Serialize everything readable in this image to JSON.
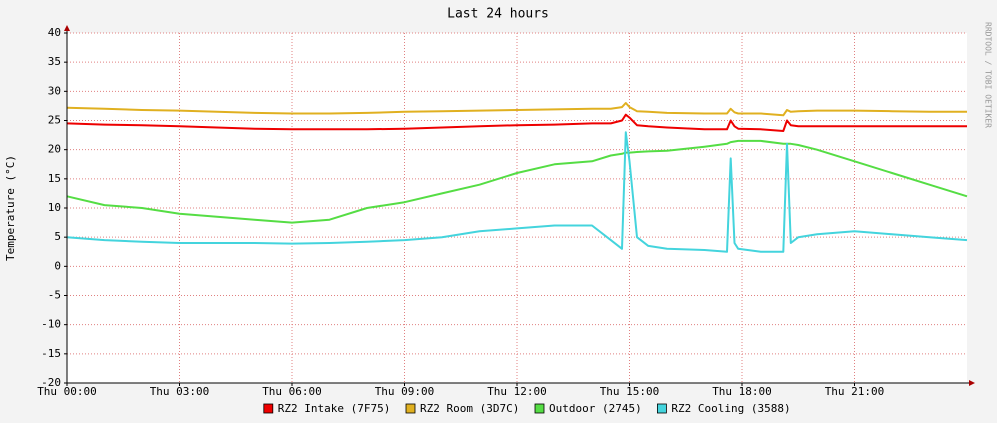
{
  "chart_data": {
    "type": "line",
    "title": "Last 24 hours",
    "y_label": "Temperature (°C)",
    "watermark": "RRDTOOL / TOBI OETIKER",
    "x": [
      0,
      1,
      2,
      3,
      4,
      5,
      6,
      7,
      8,
      9,
      10,
      11,
      12,
      13,
      14,
      14.5,
      14.8,
      14.9,
      15,
      15.2,
      15.5,
      16,
      17,
      17.6,
      17.7,
      17.8,
      17.9,
      18.5,
      19.1,
      19.2,
      19.3,
      19.5,
      20,
      21,
      22,
      23,
      24
    ],
    "xlim": [
      0,
      24
    ],
    "xticks": [
      {
        "value": 0,
        "label": "Thu 00:00"
      },
      {
        "value": 3,
        "label": "Thu 03:00"
      },
      {
        "value": 6,
        "label": "Thu 06:00"
      },
      {
        "value": 9,
        "label": "Thu 09:00"
      },
      {
        "value": 12,
        "label": "Thu 12:00"
      },
      {
        "value": 15,
        "label": "Thu 15:00"
      },
      {
        "value": 18,
        "label": "Thu 18:00"
      },
      {
        "value": 21,
        "label": "Thu 21:00"
      }
    ],
    "ylim": [
      -20,
      40
    ],
    "yticks": [
      -20,
      -15,
      -10,
      -5,
      0,
      5,
      10,
      15,
      20,
      25,
      30,
      35,
      40
    ],
    "grid": true,
    "legend": "bottom",
    "series": [
      {
        "name": "RZ2 Intake (7F75)",
        "color": "#ee0000",
        "values": [
          24.5,
          24.3,
          24.2,
          24,
          23.8,
          23.6,
          23.5,
          23.5,
          23.5,
          23.6,
          23.8,
          24,
          24.2,
          24.3,
          24.5,
          24.5,
          25,
          26,
          25.5,
          24.2,
          24,
          23.8,
          23.5,
          23.5,
          25,
          24,
          23.6,
          23.5,
          23.2,
          25,
          24.2,
          24,
          24,
          24,
          24,
          24,
          24
        ]
      },
      {
        "name": "RZ2 Room (3D7C)",
        "color": "#e0b020",
        "values": [
          27.2,
          27,
          26.8,
          26.7,
          26.5,
          26.3,
          26.2,
          26.2,
          26.3,
          26.5,
          26.6,
          26.7,
          26.8,
          26.9,
          27,
          27,
          27.3,
          28,
          27.3,
          26.6,
          26.5,
          26.3,
          26.2,
          26.2,
          27,
          26.4,
          26.2,
          26.2,
          25.9,
          26.8,
          26.5,
          26.6,
          26.7,
          26.7,
          26.6,
          26.5,
          26.5
        ]
      },
      {
        "name": "Outdoor (2745)",
        "color": "#55dd44",
        "values": [
          12,
          10.5,
          10,
          9,
          8.5,
          8,
          7.5,
          8,
          10,
          11,
          12.5,
          14,
          16,
          17.5,
          18,
          19,
          19.3,
          19.5,
          19.5,
          19.6,
          19.7,
          19.8,
          20.5,
          21,
          21.3,
          21.4,
          21.5,
          21.5,
          21,
          21,
          21,
          20.8,
          20,
          18,
          16,
          14,
          12
        ]
      },
      {
        "name": "RZ2 Cooling (3588)",
        "color": "#44d4dd",
        "values": [
          5,
          4.5,
          4.2,
          4,
          4,
          4,
          3.9,
          4,
          4.2,
          4.5,
          5,
          6,
          6.5,
          7,
          7,
          4.5,
          3,
          23,
          18,
          5,
          3.5,
          3,
          2.8,
          2.5,
          18.5,
          4,
          3,
          2.5,
          2.5,
          21,
          4,
          5,
          5.5,
          6,
          5.5,
          5,
          4.5
        ]
      }
    ]
  }
}
